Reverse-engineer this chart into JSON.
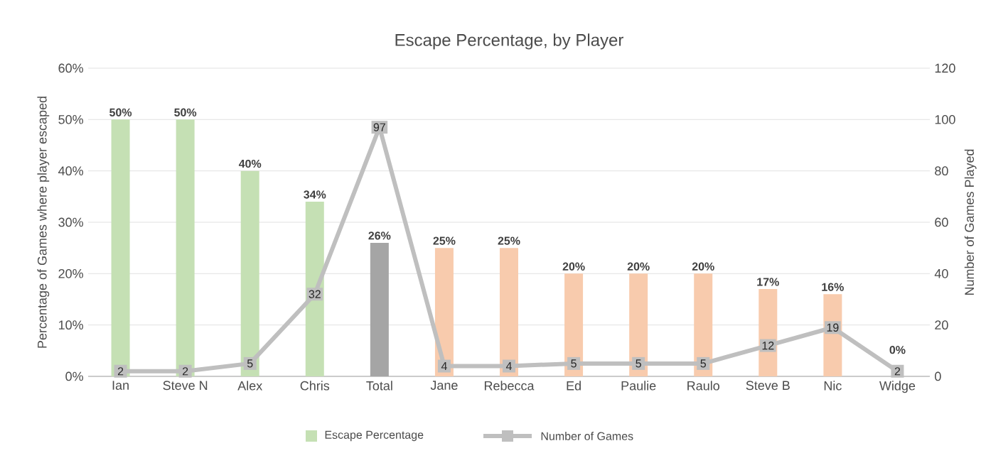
{
  "chart_data": {
    "type": "bar",
    "title": "Escape Percentage, by Player",
    "ylabel": "Percentage of Games where player escaped",
    "y2label": "Number of Games Played",
    "categories": [
      "Ian",
      "Steve N",
      "Alex",
      "Chris",
      "Total",
      "Jane",
      "Rebecca",
      "Ed",
      "Paulie",
      "Raulo",
      "Steve B",
      "Nic",
      "Widge"
    ],
    "series": [
      {
        "name": "Escape Percentage",
        "colors": [
          "#c5e0b4",
          "#c5e0b4",
          "#c5e0b4",
          "#c5e0b4",
          "#a5a5a5",
          "#f8cbad",
          "#f8cbad",
          "#f8cbad",
          "#f8cbad",
          "#f8cbad",
          "#f8cbad",
          "#f8cbad",
          "#f8cbad"
        ],
        "values": [
          50,
          50,
          40,
          34,
          26,
          25,
          25,
          20,
          20,
          20,
          17,
          16,
          0
        ],
        "value_labels": [
          "50%",
          "50%",
          "40%",
          "34%",
          "26%",
          "25%",
          "25%",
          "20%",
          "20%",
          "20%",
          "17%",
          "16%",
          "0%"
        ]
      },
      {
        "name": "Number of Games",
        "type": "line",
        "axis": "y2",
        "color": "#bfbfbf",
        "values": [
          2,
          2,
          5,
          32,
          97,
          4,
          4,
          5,
          5,
          5,
          12,
          19,
          2
        ],
        "value_labels": [
          "2",
          "2",
          "5",
          "32",
          "97",
          "4",
          "4",
          "5",
          "5",
          "5",
          "12",
          "19",
          "2"
        ]
      }
    ],
    "ylim": [
      0,
      60
    ],
    "yticks": [
      {
        "value": 0,
        "label": "0%"
      },
      {
        "value": 10,
        "label": "10%"
      },
      {
        "value": 20,
        "label": "20%"
      },
      {
        "value": 30,
        "label": "30%"
      },
      {
        "value": 40,
        "label": "40%"
      },
      {
        "value": 50,
        "label": "50%"
      },
      {
        "value": 60,
        "label": "60%"
      }
    ],
    "y2lim": [
      0,
      120
    ],
    "y2ticks": [
      0,
      20,
      40,
      60,
      80,
      100,
      120
    ],
    "grid": "y",
    "legend": "bottom",
    "marker": "square",
    "line_style": "solid"
  }
}
